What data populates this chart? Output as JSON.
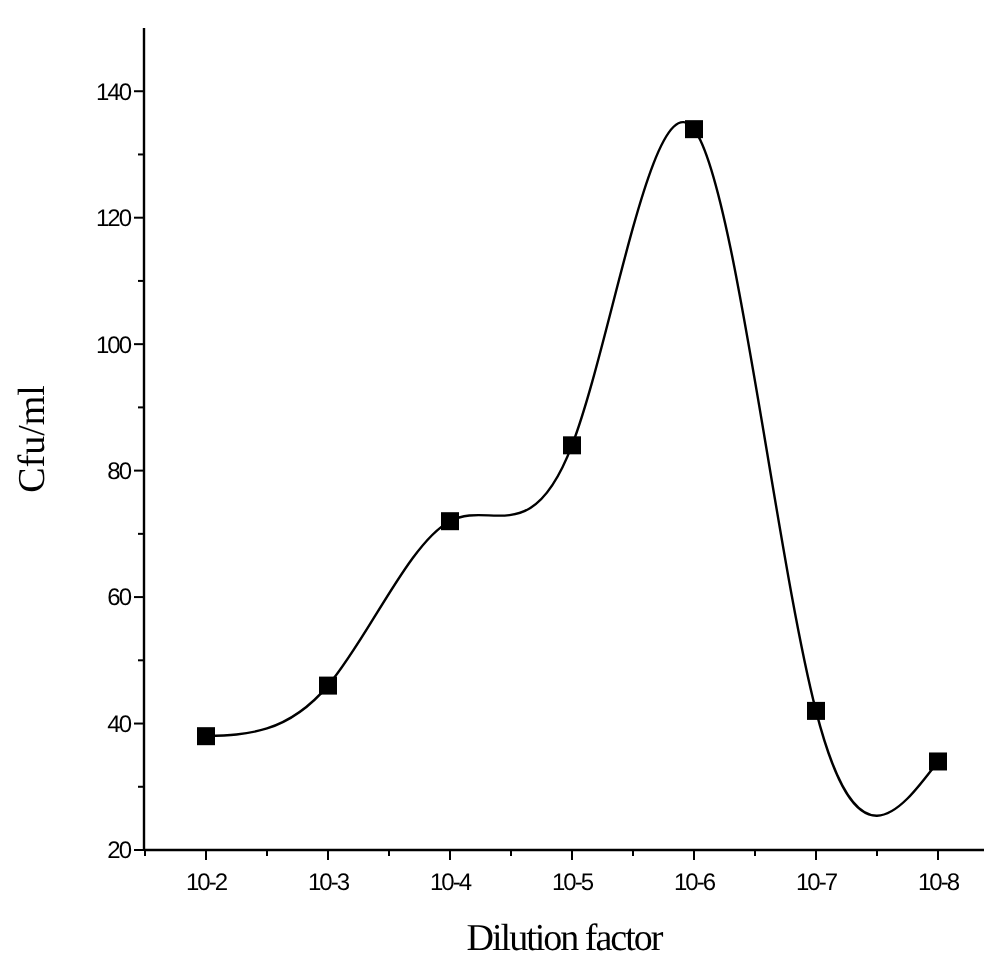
{
  "chart_data": {
    "type": "line",
    "xlabel": "Dilution factor",
    "ylabel": "Cfu/ml",
    "categories": [
      "10-2",
      "10-3",
      "10-4",
      "10-5",
      "10-6",
      "10-7",
      "10-8"
    ],
    "series": [
      {
        "color": "#000000",
        "values": [
          38,
          46,
          72,
          84,
          134,
          42,
          34
        ]
      }
    ],
    "ylim": [
      20,
      150
    ],
    "yticks": [
      20,
      {
        "value": 30,
        "label": null
      },
      40,
      {
        "value": 50,
        "label": null
      },
      60,
      {
        "value": 70,
        "label": null
      },
      80,
      {
        "value": 90,
        "label": null
      },
      100,
      {
        "value": 110,
        "label": null
      },
      120,
      {
        "value": 130,
        "label": null
      },
      140
    ],
    "marker": "square",
    "line_style": "solid",
    "grid": false
  }
}
